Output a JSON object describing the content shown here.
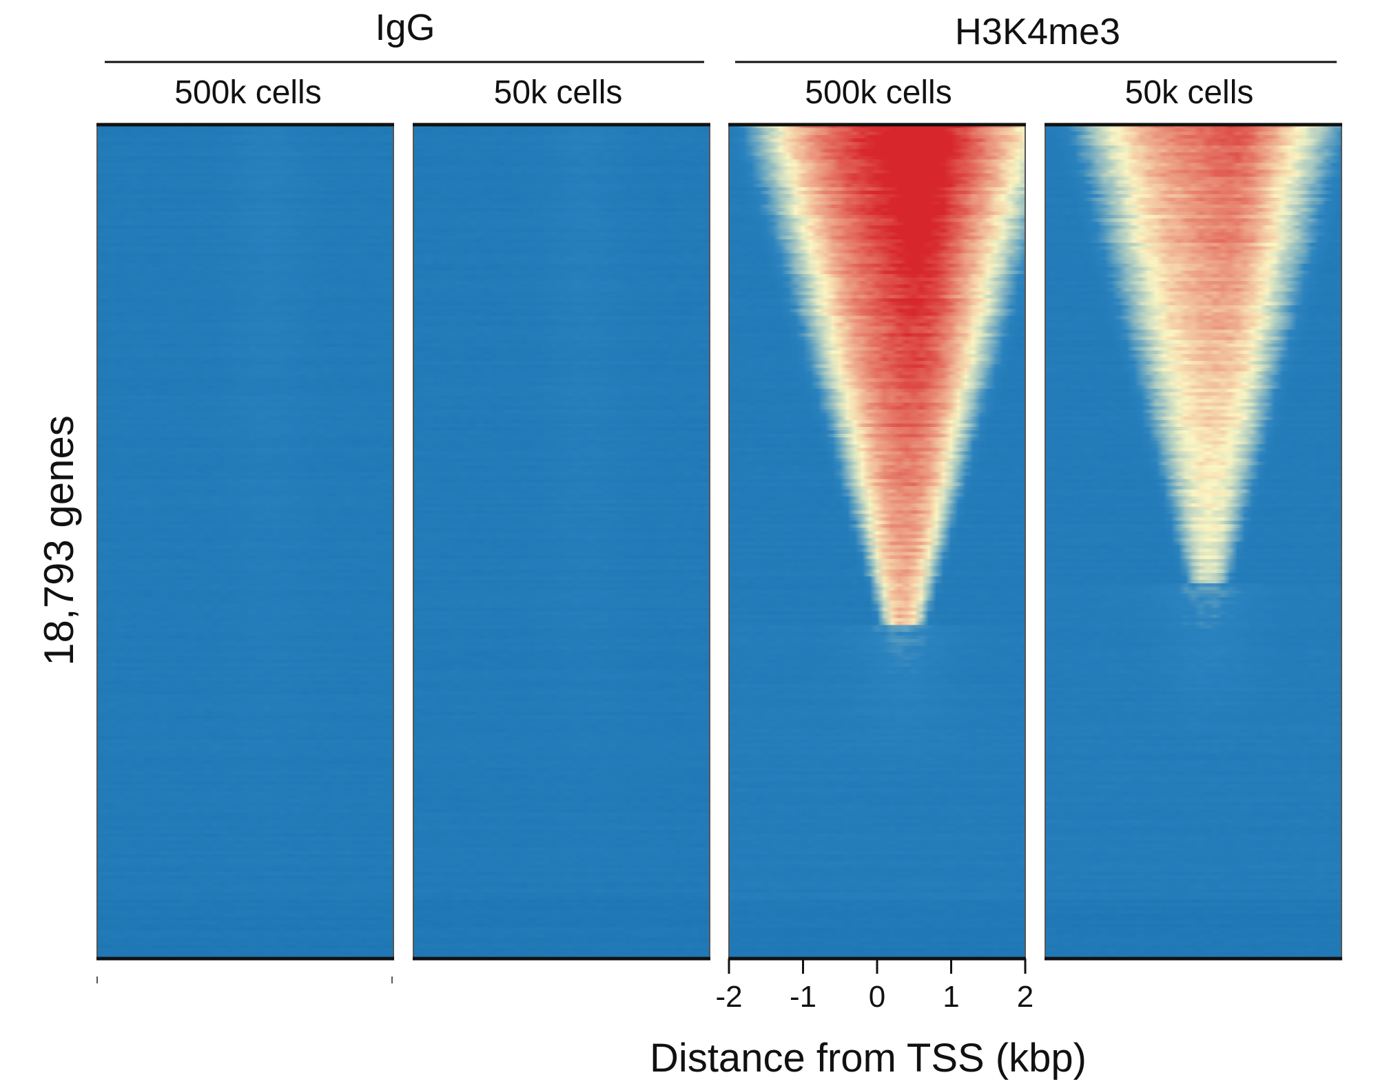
{
  "chart_data": {
    "type": "heatmap",
    "groups": [
      {
        "name": "IgG",
        "panels": [
          0,
          1
        ]
      },
      {
        "name": "H3K4me3",
        "panels": [
          2,
          3
        ]
      }
    ],
    "panels": [
      {
        "title": "500k cells",
        "group": "IgG",
        "signal": "background"
      },
      {
        "title": "50k cells",
        "group": "IgG",
        "signal": "background"
      },
      {
        "title": "500k cells",
        "group": "H3K4me3",
        "signal": "strong"
      },
      {
        "title": "50k cells",
        "group": "H3K4me3",
        "signal": "moderate"
      }
    ],
    "ylabel": "18,793 genes",
    "xlabel": "Distance from TSS (kbp)",
    "x_ticks": [
      "-2",
      "-1",
      "0",
      "1",
      "2"
    ],
    "x_range": [
      -2,
      2
    ],
    "n_rows": 18793,
    "sort_order": "descending signal",
    "colors": {
      "low": "#1a72b0",
      "mid": "#fbf6c3",
      "high": "#d7262c",
      "frame": "#111111"
    }
  }
}
